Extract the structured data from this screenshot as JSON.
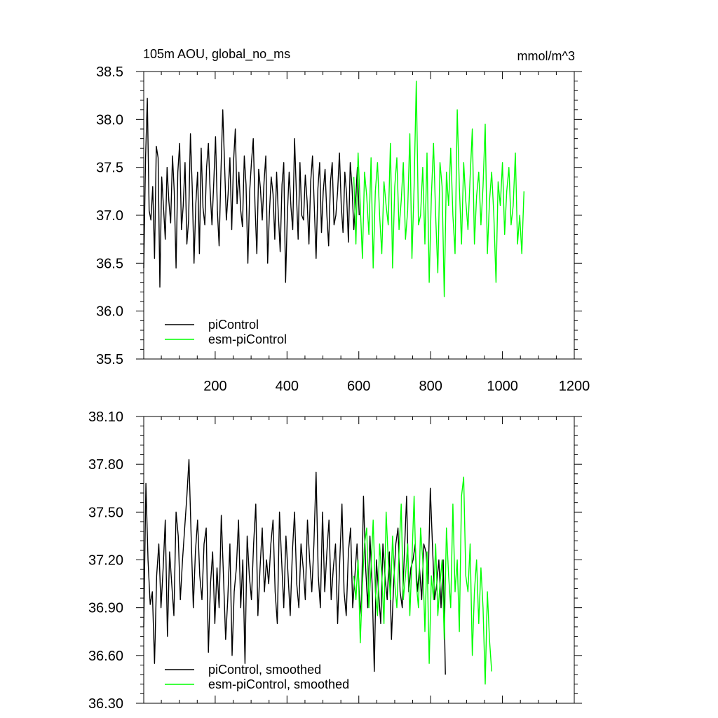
{
  "figure": {
    "title": "105m AOU, global_no_ms",
    "units": "mmol/m^3"
  },
  "chart_data": [
    {
      "type": "line",
      "xlim": [
        1,
        1200
      ],
      "ylim": [
        35.5,
        38.5
      ],
      "xticks": [
        200,
        400,
        600,
        800,
        1000,
        1200
      ],
      "xtick_labels": [
        "200",
        "400",
        "600",
        "800",
        "1000",
        "1200"
      ],
      "yticks": [
        35.5,
        36.0,
        36.5,
        37.0,
        37.5,
        38.0,
        38.5
      ],
      "ytick_labels": [
        "35.5",
        "36.0",
        "36.5",
        "37.0",
        "37.5",
        "38.0",
        "38.5"
      ],
      "legend_position": "bottom-left",
      "legend": [
        "piControl",
        "esm-piControl"
      ],
      "series": [
        {
          "name": "piControl",
          "color": "#000000",
          "x_start": 1,
          "x_step": 5,
          "values": [
            36.45,
            37.6,
            38.22,
            37.05,
            36.95,
            37.3,
            36.55,
            37.72,
            37.6,
            36.25,
            37.4,
            37.08,
            36.75,
            37.5,
            37.15,
            36.92,
            37.62,
            37.25,
            36.45,
            37.45,
            37.75,
            36.85,
            37.1,
            37.55,
            36.7,
            36.95,
            37.85,
            37.3,
            36.5,
            37.12,
            37.45,
            36.6,
            37.7,
            37.08,
            36.9,
            37.5,
            37.75,
            37.25,
            36.9,
            37.35,
            37.82,
            37.05,
            36.68,
            37.45,
            38.1,
            37.55,
            36.95,
            37.22,
            37.6,
            36.85,
            37.55,
            37.9,
            37.12,
            37.45,
            37.05,
            36.88,
            37.62,
            37.32,
            36.5,
            37.25,
            37.55,
            37.8,
            37.1,
            36.6,
            37.48,
            37.28,
            36.95,
            37.35,
            37.62,
            36.5,
            37.02,
            37.4,
            37.22,
            36.75,
            37.45,
            37.0,
            36.62,
            37.32,
            37.55,
            36.3,
            37.0,
            37.45,
            37.08,
            36.85,
            37.8,
            37.25,
            36.75,
            37.55,
            37.0,
            36.95,
            37.42,
            37.15,
            36.7,
            37.35,
            37.62,
            37.1,
            36.55,
            37.28,
            37.55,
            36.82,
            37.25,
            37.48,
            37.0,
            36.68,
            37.35,
            37.55,
            36.9,
            37.0,
            37.25,
            37.65,
            37.1,
            36.82,
            37.45,
            37.22,
            36.72,
            37.55,
            37.3,
            36.85,
            37.15,
            37.5,
            37.0
          ],
          "values_note": ""
        },
        {
          "name": "esm-piControl",
          "color": "#00ff00",
          "x_start": 586,
          "x_step": 6,
          "values": [
            37.4,
            36.7,
            37.65,
            37.1,
            36.55,
            37.45,
            37.2,
            36.8,
            37.6,
            36.45,
            37.25,
            37.55,
            37.0,
            36.6,
            37.35,
            37.1,
            36.9,
            37.75,
            36.45,
            37.3,
            37.6,
            36.85,
            37.15,
            37.55,
            36.75,
            37.05,
            37.85,
            36.55,
            37.3,
            38.4,
            36.9,
            37.0,
            37.5,
            36.7,
            37.65,
            36.3,
            37.2,
            37.75,
            37.0,
            36.4,
            37.55,
            37.3,
            36.15,
            37.45,
            37.1,
            37.7,
            37.0,
            36.6,
            38.1,
            37.3,
            36.7,
            37.55,
            37.15,
            36.85,
            37.4,
            37.9,
            36.7,
            37.2,
            37.45,
            36.9,
            37.3,
            37.95,
            36.6,
            37.15,
            37.45,
            37.0,
            36.3,
            37.35,
            37.1,
            37.55,
            36.8,
            37.25,
            37.5,
            36.9,
            37.1,
            37.65,
            36.7,
            37.0,
            36.6,
            37.25
          ]
        }
      ]
    },
    {
      "type": "line",
      "xlim": [
        1,
        1200
      ],
      "ylim": [
        36.3,
        38.1
      ],
      "yticks": [
        36.3,
        36.6,
        36.9,
        37.2,
        37.5,
        37.8,
        38.1
      ],
      "ytick_labels": [
        "36.30",
        "36.60",
        "36.90",
        "37.20",
        "37.50",
        "37.80",
        "38.10"
      ],
      "legend_position": "bottom-left",
      "legend": [
        "piControl, smoothed",
        "esm-piControl, smoothed"
      ],
      "series": [
        {
          "name": "piControl, smoothed",
          "color": "#000000",
          "x_start": 1,
          "x_step": 6,
          "values": [
            36.78,
            37.68,
            37.2,
            36.92,
            37.0,
            36.55,
            37.1,
            37.3,
            36.9,
            37.15,
            37.45,
            36.72,
            37.25,
            37.05,
            36.85,
            37.5,
            37.35,
            36.95,
            37.2,
            37.4,
            37.6,
            37.83,
            37.35,
            36.9,
            37.25,
            37.45,
            37.1,
            36.95,
            37.3,
            37.4,
            36.62,
            37.05,
            37.25,
            36.8,
            37.15,
            36.9,
            37.48,
            37.1,
            36.7,
            36.95,
            37.3,
            36.6,
            37.0,
            37.15,
            37.45,
            36.9,
            37.2,
            36.55,
            37.35,
            37.1,
            36.95,
            37.3,
            37.55,
            36.85,
            37.15,
            37.4,
            37.0,
            37.2,
            37.05,
            37.3,
            37.45,
            37.0,
            36.8,
            37.5,
            37.2,
            36.9,
            37.35,
            37.1,
            36.85,
            37.25,
            37.5,
            37.05,
            36.9,
            37.3,
            37.15,
            36.95,
            37.45,
            37.2,
            37.0,
            37.3,
            37.75,
            37.1,
            36.9,
            37.5,
            37.0,
            37.25,
            37.45,
            36.95,
            37.15,
            37.3,
            36.8,
            37.2,
            37.55,
            37.0,
            36.85,
            37.25,
            37.4,
            36.9,
            37.1,
            37.3,
            37.0,
            36.85,
            37.6,
            37.15,
            36.9,
            37.35,
            37.05,
            36.5,
            37.2,
            37.0,
            36.8,
            37.3,
            37.1,
            36.95,
            37.25,
            36.7,
            37.05,
            37.3,
            37.4,
            37.0,
            36.9,
            37.25,
            37.6,
            37.0,
            37.15,
            37.2,
            37.3,
            37.0,
            37.15,
            36.95,
            37.3,
            37.25,
            37.05,
            37.65,
            37.3,
            36.95,
            37.05,
            37.2,
            36.9,
            37.2,
            36.48
          ]
        },
        {
          "name": "esm-piControl, smoothed",
          "color": "#00ff00",
          "x_start": 586,
          "x_step": 6,
          "values": [
            37.1,
            36.95,
            37.2,
            36.68,
            37.05,
            37.3,
            37.4,
            36.9,
            37.15,
            37.45,
            37.0,
            36.85,
            37.3,
            37.1,
            36.8,
            37.5,
            37.2,
            36.95,
            37.35,
            37.05,
            36.9,
            37.25,
            37.55,
            36.95,
            37.1,
            37.3,
            36.85,
            37.2,
            37.6,
            37.05,
            36.9,
            37.4,
            37.2,
            36.75,
            37.25,
            36.55,
            37.1,
            36.95,
            37.3,
            36.85,
            37.05,
            37.2,
            36.7,
            37.4,
            37.1,
            36.9,
            37.55,
            37.0,
            37.2,
            36.75,
            37.6,
            37.72,
            37.1,
            37.0,
            37.3,
            36.6,
            37.0,
            37.2,
            36.8,
            37.15,
            36.9,
            36.42,
            37.0,
            36.7,
            36.5
          ]
        }
      ]
    }
  ]
}
